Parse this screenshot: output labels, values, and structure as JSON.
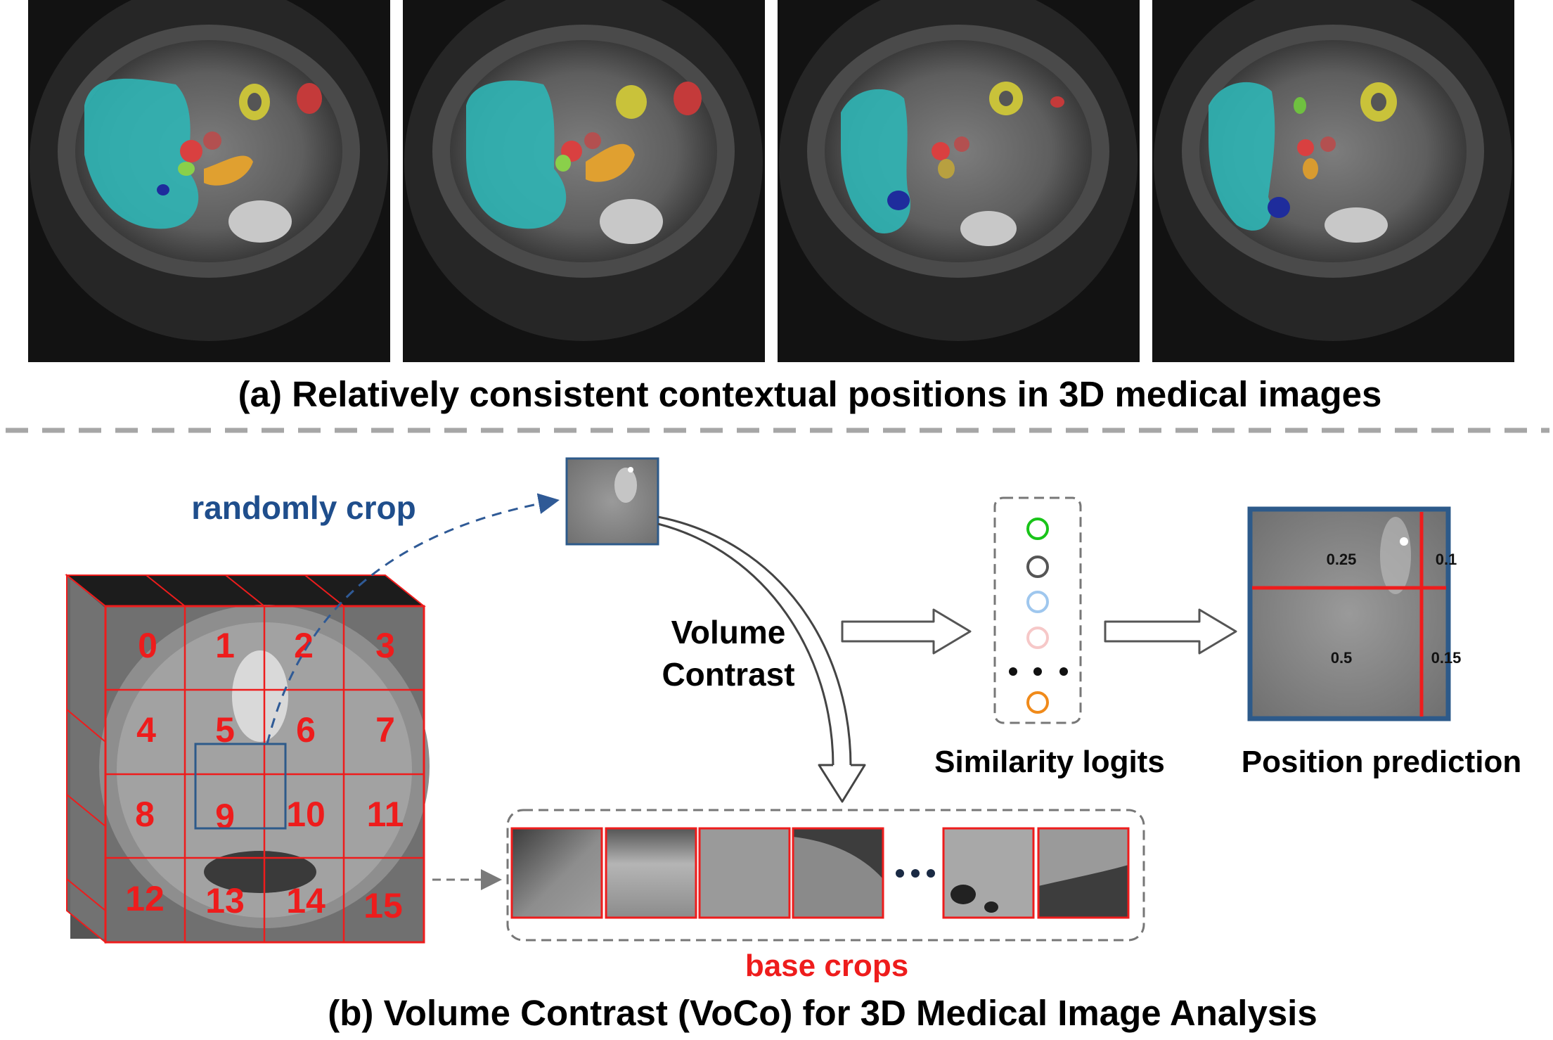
{
  "panel_a": {
    "caption": "(a) Relatively consistent contextual positions in 3D medical images",
    "slices": [
      "ct-slice-1",
      "ct-slice-2",
      "ct-slice-3",
      "ct-slice-4"
    ]
  },
  "panel_b": {
    "caption": "(b) Volume Contrast (VoCo) for 3D Medical Image Analysis",
    "random_crop_label": "randomly crop",
    "volume_contrast_label": [
      "Volume",
      "Contrast"
    ],
    "grid_numbers": [
      "0",
      "1",
      "2",
      "3",
      "4",
      "5",
      "6",
      "7",
      "8",
      "9",
      "10",
      "11",
      "12",
      "13",
      "14",
      "15"
    ],
    "base_crops_label": "base crops",
    "similarity_logits_label": "Similarity logits",
    "position_prediction_label": "Position prediction",
    "position_values": [
      "0.25",
      "0.1",
      "0.5",
      "0.15"
    ]
  },
  "colors": {
    "red": "#ee1c1c",
    "blue_text": "#1f4e8c",
    "dashed_gray": "#a6a6a6",
    "frame_blue": "#2d5a8a",
    "logit_colors": [
      "#19c419",
      "#555555",
      "#9fc7ee",
      "#f6c8c8",
      "#111111",
      "#f08a1a"
    ]
  }
}
